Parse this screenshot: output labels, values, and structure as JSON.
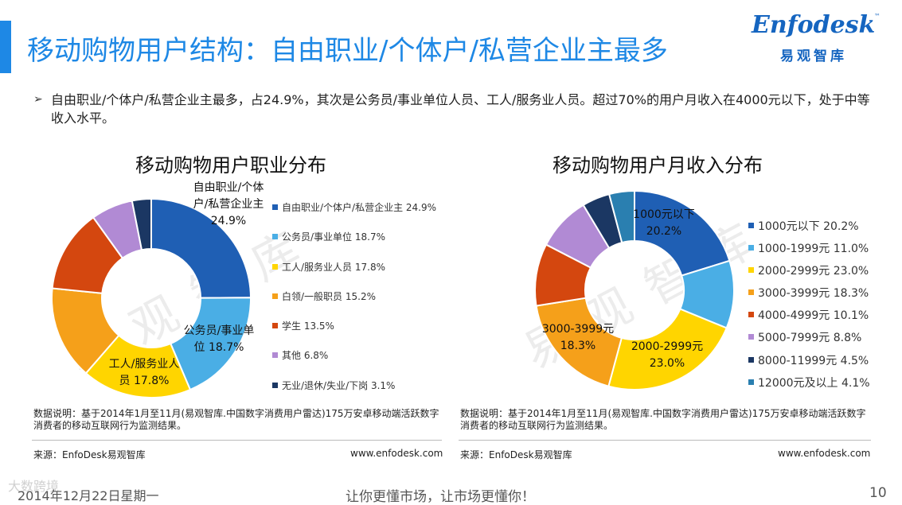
{
  "header": {
    "title": "移动购物用户结构：自由职业/个体户/私营企业主最多",
    "logo_text": "Enfodesk",
    "logo_tm": "™",
    "logo_cn": "易观智库"
  },
  "summary": {
    "bullet": "➢",
    "text": "自由职业/个体户/私营企业主最多，占24.9%，其次是公务员/事业单位人员、工人/服务业人员。超过70%的用户月收入在4000元以下，处于中等收入水平。"
  },
  "watermark": "易观智库",
  "chart_data": [
    {
      "type": "pie",
      "title": "移动购物用户职业分布",
      "categories": [
        "自由职业/个体户/私营企业主",
        "公务员/事业单位",
        "工人/服务业人员",
        "白领/一般职员",
        "学生",
        "其他",
        "无业/退休/失业/下岗"
      ],
      "values": [
        24.9,
        18.7,
        17.8,
        15.2,
        13.5,
        6.8,
        3.1
      ],
      "unit": "%",
      "colors": [
        "#1f5fb4",
        "#4aaee5",
        "#ffd500",
        "#f5a01a",
        "#d4470f",
        "#b18ad4",
        "#1b3763"
      ],
      "legend_labels": [
        "自由职业/个体户/私营企业主 24.9%",
        "公务员/事业单位 18.7%",
        "工人/服务业人员 17.8%",
        "白领/一般职员 15.2%",
        "学生 13.5%",
        "其他 6.8%",
        "无业/退休/失业/下岗 3.1%"
      ],
      "slice_labels": [
        {
          "line1": "自由职业/个体",
          "line2": "户/私营企业主",
          "line3": "24.9%"
        },
        {
          "line1": "公务员/事业单",
          "line2": "位 18.7%"
        },
        {
          "line1": "工人/服务业人",
          "line2": "员 17.8%"
        }
      ],
      "legend_position": "right"
    },
    {
      "type": "pie",
      "title": "移动购物用户月收入分布",
      "categories": [
        "1000元以下",
        "1000-1999元",
        "2000-2999元",
        "3000-3999元",
        "4000-4999元",
        "5000-7999元",
        "8000-11999元",
        "12000元及以上"
      ],
      "values": [
        20.2,
        11.0,
        23.0,
        18.3,
        10.1,
        8.8,
        4.5,
        4.1
      ],
      "unit": "%",
      "colors": [
        "#1f5fb4",
        "#4aaee5",
        "#ffd500",
        "#f5a01a",
        "#d4470f",
        "#b18ad4",
        "#1b3763",
        "#2a7fb0"
      ],
      "legend_labels": [
        "1000元以下 20.2%",
        "1000-1999元 11.0%",
        "2000-2999元 23.0%",
        "3000-3999元 18.3%",
        "4000-4999元 10.1%",
        "5000-7999元 8.8%",
        "8000-11999元 4.5%",
        "12000元及以上 4.1%"
      ],
      "slice_labels": [
        {
          "line1": "1000元以下",
          "line2": "20.2%"
        },
        {
          "line1": "2000-2999元",
          "line2": "23.0%"
        },
        {
          "line1": "3000-3999元",
          "line2": "18.3%"
        }
      ],
      "legend_position": "right"
    }
  ],
  "notes": {
    "left": "数据说明：基于2014年1月至11月(易观智库.中国数字消费用户雷达)175万安卓移动端活跃数字消费者的移动互联网行为监测结果。",
    "right": "数据说明：基于2014年1月至11月(易观智库.中国数字消费用户雷达)175万安卓移动端活跃数字消费者的移动互联网行为监测结果。"
  },
  "sources": {
    "left": "来源：EnfoDesk易观智库",
    "right": "来源：EnfoDesk易观智库",
    "url_left": "www.enfodesk.com",
    "url_right": "www.enfodesk.com"
  },
  "footer": {
    "corner_mark": "大数跨境",
    "date": "2014年12月22日星期一",
    "slogan": "让你更懂市场，让市场更懂你！",
    "page": "10"
  }
}
